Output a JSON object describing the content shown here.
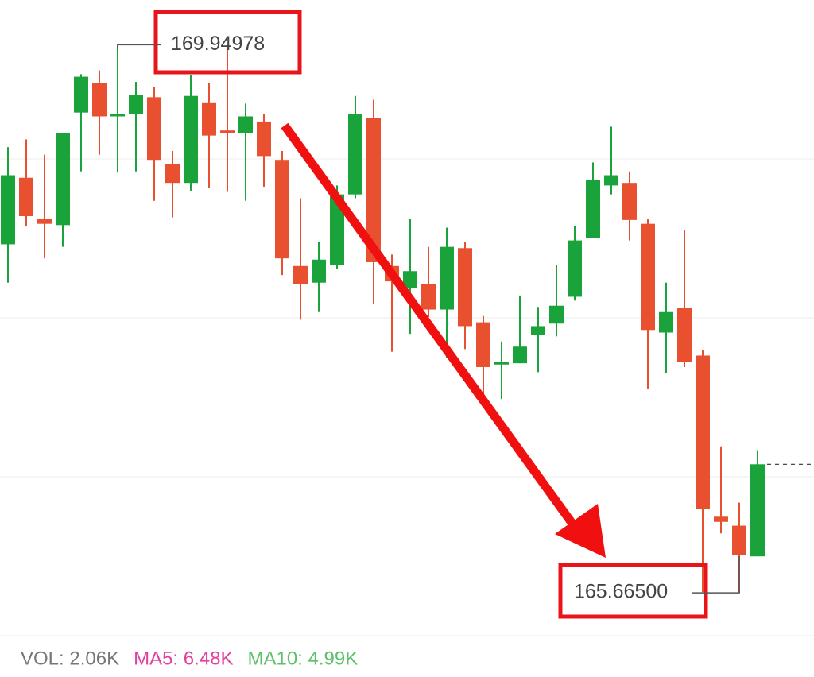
{
  "chart_data": {
    "type": "candlestick",
    "ylim": [
      165.33,
      170.3
    ],
    "up_color": "#1aa33a",
    "down_color": "#e8502f",
    "open": [
      168.39,
      168.91,
      168.59,
      168.54,
      169.42,
      169.65,
      169.39,
      169.41,
      169.54,
      169.02,
      168.87,
      169.5,
      169.28,
      169.26,
      169.35,
      169.05,
      168.22,
      168.09,
      168.23,
      168.78,
      169.38,
      168.22,
      168.05,
      168.08,
      167.88,
      168.36,
      167.78,
      167.45,
      167.46,
      167.68,
      167.77,
      167.98,
      168.44,
      168.85,
      168.87,
      168.55,
      167.7,
      167.89,
      167.52,
      166.26,
      166.19,
      165.95
    ],
    "high": [
      169.15,
      169.21,
      169.09,
      169.26,
      169.72,
      169.75,
      169.94978,
      169.66,
      169.62,
      169.12,
      169.71,
      169.65,
      169.95,
      169.49,
      169.41,
      169.12,
      168.75,
      168.41,
      168.85,
      169.55,
      169.52,
      168.31,
      168.59,
      168.37,
      168.52,
      168.41,
      167.83,
      167.63,
      167.99,
      167.9,
      168.23,
      168.53,
      169.03,
      169.31,
      168.96,
      168.59,
      168.09,
      168.5,
      167.56,
      166.81,
      166.37,
      166.78
    ],
    "low": [
      168.09,
      168.53,
      168.28,
      168.37,
      168.96,
      169.09,
      168.95,
      168.96,
      168.73,
      168.6,
      168.81,
      168.83,
      168.8,
      168.73,
      168.84,
      168.15,
      167.8,
      167.86,
      168.2,
      168.75,
      167.92,
      167.55,
      167.69,
      167.82,
      167.5,
      167.57,
      167.11,
      167.18,
      167.46,
      167.39,
      167.67,
      167.95,
      168.44,
      168.78,
      168.42,
      167.26,
      167.38,
      167.43,
      165.67,
      166.13,
      165.665,
      165.95
    ],
    "close": [
      168.93,
      168.61,
      168.55,
      169.26,
      169.7,
      169.39,
      169.41,
      169.56,
      169.05,
      168.87,
      169.55,
      169.24,
      169.26,
      169.39,
      169.08,
      168.28,
      168.08,
      168.27,
      168.78,
      169.41,
      168.25,
      168.1,
      168.18,
      167.88,
      168.37,
      167.75,
      167.43,
      167.47,
      167.59,
      167.75,
      167.91,
      168.42,
      168.89,
      168.93,
      168.58,
      167.72,
      167.86,
      167.47,
      166.32,
      166.22,
      165.96,
      166.67
    ],
    "annotations": [
      {
        "value": 169.94978,
        "label": "169.94978"
      },
      {
        "value": 165.665,
        "label": "165.66500"
      }
    ],
    "footer": [
      {
        "text": "VOL: 2.06K",
        "color": "#777777"
      },
      {
        "text": "MA5: 6.48K",
        "color": "#e040a0"
      },
      {
        "text": "MA10: 4.99K",
        "color": "#5cbf6a"
      }
    ]
  }
}
